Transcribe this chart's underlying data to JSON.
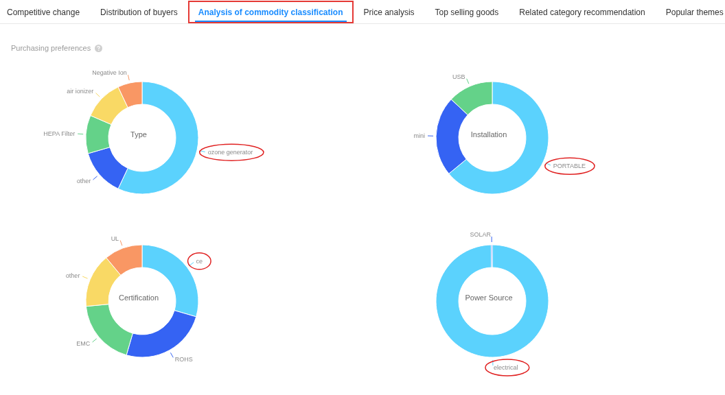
{
  "chart_data": [
    {
      "type": "other",
      "title": "Purchasing preferences",
      "annotations": [
        "Competitive change",
        "Distribution of buyers",
        "Analysis of commodity classification",
        "Price analysis",
        "Top selling goods",
        "Related category recommendation",
        "Popular themes"
      ]
    },
    {
      "type": "donut",
      "title": "Type",
      "categories": [
        "ozone generator",
        "other",
        "HEPA Filter",
        "air ionizer",
        "Negative Ion"
      ],
      "values": [
        57,
        13.5,
        11,
        11.5,
        7
      ],
      "colors": [
        "#5bd2fd",
        "#3563f3",
        "#64d289",
        "#f9d965",
        "#f99764"
      ]
    },
    {
      "type": "donut",
      "title": "Installation",
      "categories": [
        "PORTABLE",
        "mini",
        "USB"
      ],
      "values": [
        64,
        23,
        13
      ],
      "colors": [
        "#5bd2fd",
        "#3563f3",
        "#64d289"
      ]
    },
    {
      "type": "donut",
      "title": "Certification",
      "categories": [
        "ce",
        "ROHS",
        "EMC",
        "other",
        "UL"
      ],
      "values": [
        29.5,
        25,
        19,
        15.5,
        11
      ],
      "colors": [
        "#5bd2fd",
        "#3563f3",
        "#64d289",
        "#f9d965",
        "#f99764"
      ]
    },
    {
      "type": "donut",
      "title": "Power Source",
      "categories": [
        "electrical",
        "SOLAR"
      ],
      "values": [
        99.7,
        0.3
      ],
      "colors": [
        "#5bd2fd",
        "#3563f3"
      ]
    }
  ]
}
